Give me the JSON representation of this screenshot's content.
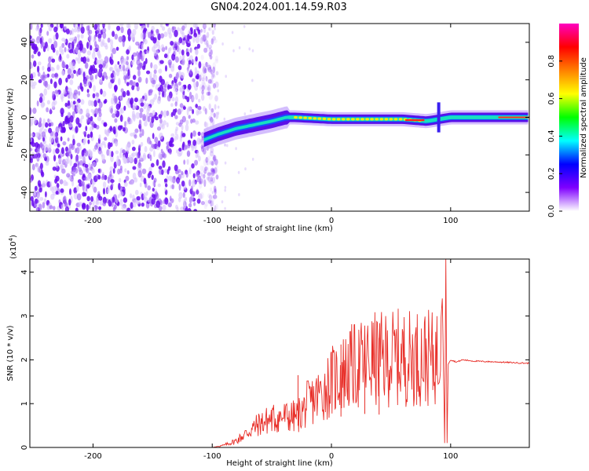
{
  "title": "GN04.2024.001.14.59.R03",
  "chart_data": [
    {
      "type": "heatmap",
      "xlabel": "Height of straight line (km)",
      "ylabel": "Frequency (Hz)",
      "xlim": [
        -253,
        166
      ],
      "ylim": [
        -50,
        50
      ],
      "xticks": [
        -200,
        -100,
        0,
        100
      ],
      "xtick_labels": [
        "-200",
        "-100",
        "0",
        "100"
      ],
      "yticks": [
        -40,
        -20,
        0,
        20,
        40
      ],
      "ytick_labels": [
        "-40",
        "-20",
        "0",
        "20",
        "40"
      ],
      "ridge": {
        "x": [
          -107,
          -95,
          -80,
          -65,
          -50,
          -38,
          -30,
          0,
          30,
          60,
          80,
          90,
          100,
          166
        ],
        "y": [
          -12,
          -9,
          -6,
          -4,
          -2,
          0,
          0,
          -1,
          -1,
          -1,
          -2,
          -1,
          0,
          0
        ]
      },
      "colorbar": {
        "label": "Normalized spectral amplitude",
        "range": [
          0,
          1
        ],
        "ticks": [
          0.0,
          0.2,
          0.4,
          0.6,
          0.8
        ],
        "tick_labels": [
          "0.0",
          "0.2",
          "0.4",
          "0.6",
          "0.8"
        ],
        "colors": [
          "#ffffff",
          "#7f00ff",
          "#0000ff",
          "#00ffff",
          "#00ff00",
          "#ffff00",
          "#ff8000",
          "#ff0000",
          "#ff00c0"
        ]
      }
    },
    {
      "type": "line",
      "xlabel": "Height of straight line (km)",
      "ylabel": "SNR (10 * v/v)",
      "scale_label": "(x10",
      "scale_exp": "4",
      "scale_close": ")",
      "xlim": [
        -253,
        166
      ],
      "ylim": [
        0,
        4.3
      ],
      "xticks": [
        -200,
        -100,
        0,
        100
      ],
      "xtick_labels": [
        "-200",
        "-100",
        "0",
        "100"
      ],
      "yticks": [
        0,
        1,
        2,
        3,
        4
      ],
      "ytick_labels": [
        "0",
        "1",
        "2",
        "3",
        "4"
      ],
      "color": "#e8302a",
      "series_points": {
        "x": [
          -253,
          -100,
          -90,
          -80,
          -70,
          -60,
          -50,
          -40,
          -30,
          -25,
          -20,
          -15,
          -10,
          -5,
          0,
          5,
          10,
          15,
          20,
          25,
          30,
          35,
          40,
          45,
          50,
          60,
          70,
          80,
          85,
          90,
          93,
          95,
          96,
          97,
          98,
          100,
          105,
          110,
          120,
          140,
          166
        ],
        "y": [
          0,
          0,
          0.05,
          0.15,
          0.35,
          0.55,
          0.65,
          0.7,
          0.7,
          0.8,
          1.0,
          1.1,
          1.2,
          1.35,
          1.5,
          1.6,
          1.7,
          1.8,
          1.85,
          1.9,
          1.95,
          2.0,
          2.0,
          2.0,
          2.05,
          2.05,
          2.05,
          2.05,
          2.0,
          2.1,
          3.4,
          0.1,
          4.3,
          0.1,
          1.9,
          2.0,
          1.95,
          2.0,
          1.97,
          1.95,
          1.92
        ]
      },
      "spikes": [
        {
          "x": -28,
          "y": 1.65
        },
        {
          "x": 8,
          "y": 2.35
        },
        {
          "x": 28,
          "y": 2.55
        },
        {
          "x": 40,
          "y": 2.5
        }
      ]
    }
  ]
}
